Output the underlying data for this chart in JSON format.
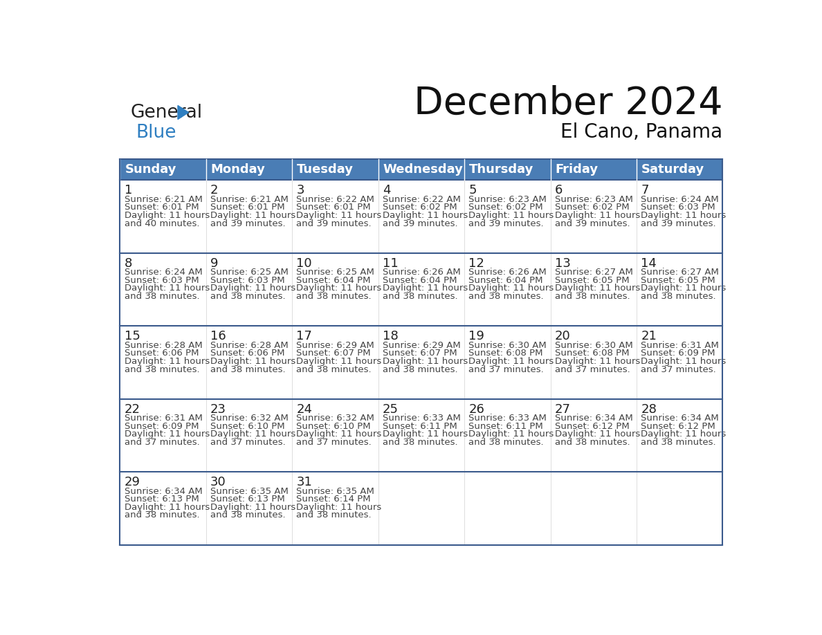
{
  "title": "December 2024",
  "subtitle": "El Cano, Panama",
  "days_of_week": [
    "Sunday",
    "Monday",
    "Tuesday",
    "Wednesday",
    "Thursday",
    "Friday",
    "Saturday"
  ],
  "header_bg": "#4A7DB5",
  "header_text": "#FFFFFF",
  "cell_bg": "#FFFFFF",
  "row_divider_color": "#3A5A8C",
  "outer_border_color": "#3A5A8C",
  "day_num_color": "#222222",
  "info_text_color": "#444444",
  "calendar_data": [
    [
      {
        "day": 1,
        "sunrise": "6:21 AM",
        "sunset": "6:01 PM",
        "daylight": "11 hours and 40 minutes."
      },
      {
        "day": 2,
        "sunrise": "6:21 AM",
        "sunset": "6:01 PM",
        "daylight": "11 hours and 39 minutes."
      },
      {
        "day": 3,
        "sunrise": "6:22 AM",
        "sunset": "6:01 PM",
        "daylight": "11 hours and 39 minutes."
      },
      {
        "day": 4,
        "sunrise": "6:22 AM",
        "sunset": "6:02 PM",
        "daylight": "11 hours and 39 minutes."
      },
      {
        "day": 5,
        "sunrise": "6:23 AM",
        "sunset": "6:02 PM",
        "daylight": "11 hours and 39 minutes."
      },
      {
        "day": 6,
        "sunrise": "6:23 AM",
        "sunset": "6:02 PM",
        "daylight": "11 hours and 39 minutes."
      },
      {
        "day": 7,
        "sunrise": "6:24 AM",
        "sunset": "6:03 PM",
        "daylight": "11 hours and 39 minutes."
      }
    ],
    [
      {
        "day": 8,
        "sunrise": "6:24 AM",
        "sunset": "6:03 PM",
        "daylight": "11 hours and 38 minutes."
      },
      {
        "day": 9,
        "sunrise": "6:25 AM",
        "sunset": "6:03 PM",
        "daylight": "11 hours and 38 minutes."
      },
      {
        "day": 10,
        "sunrise": "6:25 AM",
        "sunset": "6:04 PM",
        "daylight": "11 hours and 38 minutes."
      },
      {
        "day": 11,
        "sunrise": "6:26 AM",
        "sunset": "6:04 PM",
        "daylight": "11 hours and 38 minutes."
      },
      {
        "day": 12,
        "sunrise": "6:26 AM",
        "sunset": "6:04 PM",
        "daylight": "11 hours and 38 minutes."
      },
      {
        "day": 13,
        "sunrise": "6:27 AM",
        "sunset": "6:05 PM",
        "daylight": "11 hours and 38 minutes."
      },
      {
        "day": 14,
        "sunrise": "6:27 AM",
        "sunset": "6:05 PM",
        "daylight": "11 hours and 38 minutes."
      }
    ],
    [
      {
        "day": 15,
        "sunrise": "6:28 AM",
        "sunset": "6:06 PM",
        "daylight": "11 hours and 38 minutes."
      },
      {
        "day": 16,
        "sunrise": "6:28 AM",
        "sunset": "6:06 PM",
        "daylight": "11 hours and 38 minutes."
      },
      {
        "day": 17,
        "sunrise": "6:29 AM",
        "sunset": "6:07 PM",
        "daylight": "11 hours and 38 minutes."
      },
      {
        "day": 18,
        "sunrise": "6:29 AM",
        "sunset": "6:07 PM",
        "daylight": "11 hours and 38 minutes."
      },
      {
        "day": 19,
        "sunrise": "6:30 AM",
        "sunset": "6:08 PM",
        "daylight": "11 hours and 37 minutes."
      },
      {
        "day": 20,
        "sunrise": "6:30 AM",
        "sunset": "6:08 PM",
        "daylight": "11 hours and 37 minutes."
      },
      {
        "day": 21,
        "sunrise": "6:31 AM",
        "sunset": "6:09 PM",
        "daylight": "11 hours and 37 minutes."
      }
    ],
    [
      {
        "day": 22,
        "sunrise": "6:31 AM",
        "sunset": "6:09 PM",
        "daylight": "11 hours and 37 minutes."
      },
      {
        "day": 23,
        "sunrise": "6:32 AM",
        "sunset": "6:10 PM",
        "daylight": "11 hours and 37 minutes."
      },
      {
        "day": 24,
        "sunrise": "6:32 AM",
        "sunset": "6:10 PM",
        "daylight": "11 hours and 37 minutes."
      },
      {
        "day": 25,
        "sunrise": "6:33 AM",
        "sunset": "6:11 PM",
        "daylight": "11 hours and 38 minutes."
      },
      {
        "day": 26,
        "sunrise": "6:33 AM",
        "sunset": "6:11 PM",
        "daylight": "11 hours and 38 minutes."
      },
      {
        "day": 27,
        "sunrise": "6:34 AM",
        "sunset": "6:12 PM",
        "daylight": "11 hours and 38 minutes."
      },
      {
        "day": 28,
        "sunrise": "6:34 AM",
        "sunset": "6:12 PM",
        "daylight": "11 hours and 38 minutes."
      }
    ],
    [
      {
        "day": 29,
        "sunrise": "6:34 AM",
        "sunset": "6:13 PM",
        "daylight": "11 hours and 38 minutes."
      },
      {
        "day": 30,
        "sunrise": "6:35 AM",
        "sunset": "6:13 PM",
        "daylight": "11 hours and 38 minutes."
      },
      {
        "day": 31,
        "sunrise": "6:35 AM",
        "sunset": "6:14 PM",
        "daylight": "11 hours and 38 minutes."
      },
      null,
      null,
      null,
      null
    ]
  ],
  "logo_color_general": "#222222",
  "logo_color_blue": "#2F7FC1",
  "logo_triangle_color": "#2F7FC1",
  "title_fontsize": 40,
  "subtitle_fontsize": 20,
  "header_fontsize": 13,
  "day_num_fontsize": 13,
  "info_fontsize": 9.5
}
